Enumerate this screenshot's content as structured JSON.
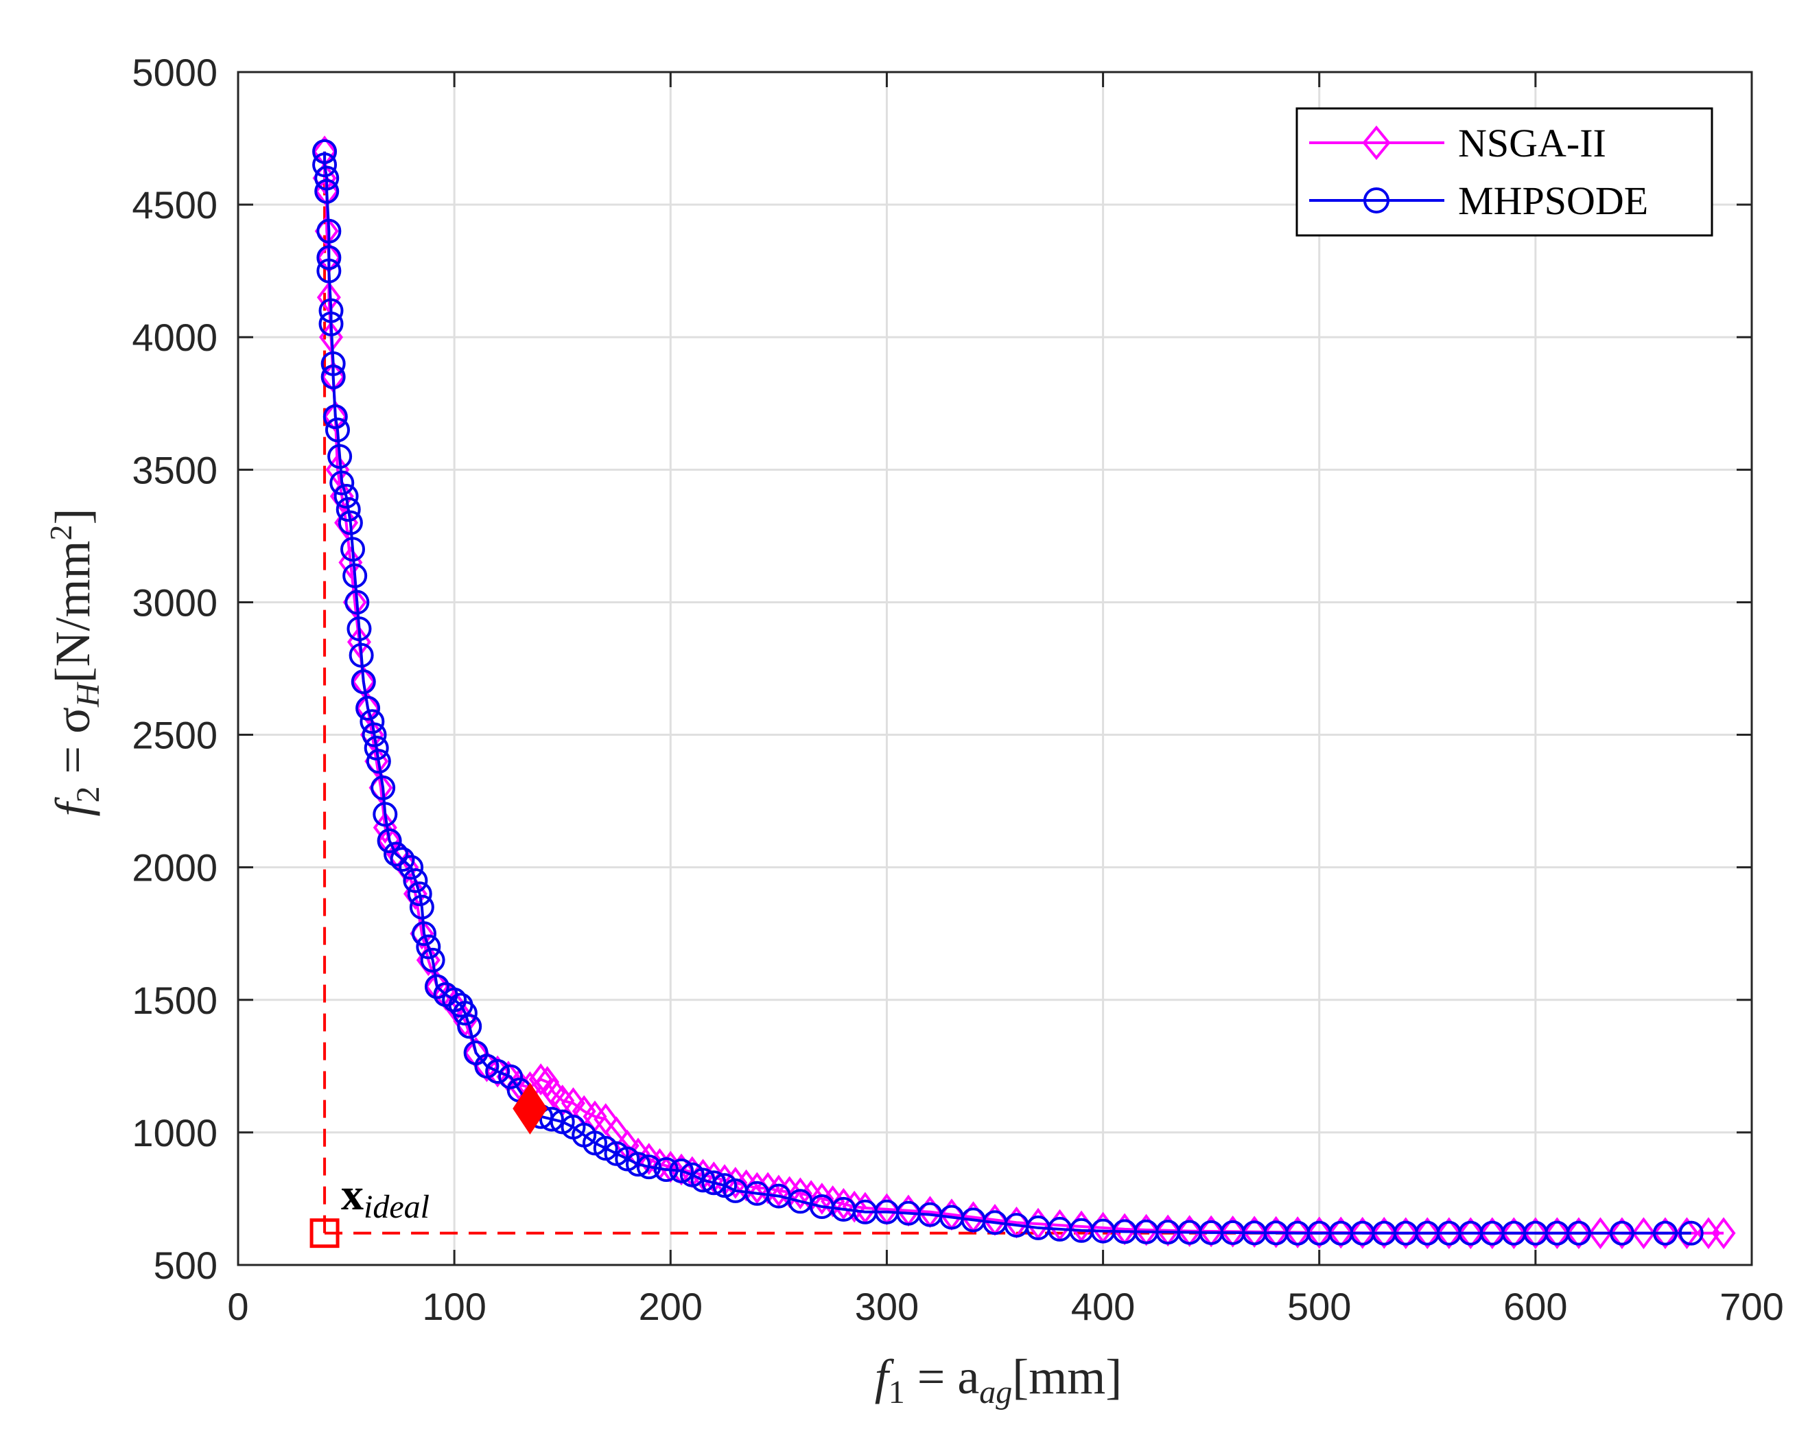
{
  "colors": {
    "nsga": "#ff00ff",
    "mhpsode": "#0000ee",
    "ideal": "#ff0000",
    "grid": "#dfdfdf",
    "axis": "#262626"
  },
  "chart_data": {
    "type": "line",
    "title": "",
    "xlabel": {
      "main": "f",
      "sub1": "1",
      "eq": " = a",
      "sub2": "ag",
      "unit": "[mm]"
    },
    "ylabel": {
      "main": "f",
      "sub1": "2",
      "eq": " = σ",
      "sub2": "H",
      "unit1": "[N/mm",
      "sup": "2",
      "unit2": "]"
    },
    "xlim": [
      0,
      700
    ],
    "ylim": [
      500,
      5000
    ],
    "x_ticks": [
      0,
      100,
      200,
      300,
      400,
      500,
      600,
      700
    ],
    "y_ticks": [
      500,
      1000,
      1500,
      2000,
      2500,
      3000,
      3500,
      4000,
      4500,
      5000
    ],
    "x_tick_labels": [
      "0",
      "100",
      "200",
      "300",
      "400",
      "500",
      "600",
      "700"
    ],
    "y_tick_labels": [
      "500",
      "1000",
      "1500",
      "2000",
      "2500",
      "3000",
      "3500",
      "4000",
      "4500",
      "5000"
    ],
    "grid": true,
    "legend_position": "top-right",
    "series": [
      {
        "name": "NSGA-II",
        "color": "#ff00ff",
        "marker": "diamond",
        "x": [
          40,
          40,
          41,
          41,
          42,
          42,
          43,
          44,
          45,
          46,
          48,
          50,
          52,
          54,
          56,
          58,
          60,
          62,
          64,
          66,
          68,
          70,
          74,
          78,
          82,
          85,
          88,
          92,
          96,
          100,
          105,
          110,
          115,
          120,
          125,
          130,
          135,
          140,
          143,
          146,
          150,
          155,
          160,
          165,
          170,
          175,
          180,
          185,
          190,
          195,
          200,
          205,
          210,
          215,
          220,
          225,
          230,
          235,
          240,
          245,
          250,
          255,
          260,
          265,
          270,
          275,
          280,
          285,
          290,
          300,
          310,
          320,
          330,
          340,
          350,
          360,
          370,
          380,
          390,
          400,
          410,
          420,
          430,
          440,
          450,
          460,
          470,
          480,
          490,
          500,
          510,
          520,
          530,
          540,
          550,
          560,
          570,
          580,
          590,
          600,
          610,
          620,
          630,
          640,
          650,
          660,
          670,
          680,
          687
        ],
        "y": [
          4700,
          4600,
          4550,
          4400,
          4300,
          4150,
          4000,
          3850,
          3700,
          3500,
          3400,
          3300,
          3150,
          3000,
          2850,
          2700,
          2600,
          2500,
          2400,
          2300,
          2150,
          2100,
          2050,
          2000,
          1900,
          1750,
          1650,
          1550,
          1520,
          1480,
          1420,
          1300,
          1250,
          1230,
          1210,
          1180,
          1170,
          1200,
          1190,
          1150,
          1120,
          1110,
          1080,
          1060,
          1050,
          1000,
          950,
          920,
          900,
          880,
          870,
          860,
          850,
          840,
          830,
          820,
          810,
          800,
          790,
          790,
          780,
          775,
          770,
          760,
          750,
          740,
          730,
          720,
          715,
          710,
          705,
          700,
          690,
          680,
          670,
          660,
          655,
          650,
          645,
          640,
          635,
          632,
          630,
          628,
          627,
          626,
          625,
          624,
          623,
          622,
          622,
          621,
          621,
          620,
          620,
          620,
          620,
          620,
          620,
          620,
          620,
          620,
          620,
          620,
          620,
          620,
          620,
          620,
          620
        ]
      },
      {
        "name": "MHPSODE",
        "color": "#0000ee",
        "marker": "circle",
        "x": [
          40,
          40,
          41,
          41,
          42,
          42,
          42,
          43,
          43,
          44,
          44,
          45,
          46,
          47,
          48,
          50,
          51,
          52,
          53,
          54,
          55,
          56,
          57,
          58,
          60,
          62,
          63,
          64,
          65,
          67,
          68,
          70,
          73,
          76,
          80,
          82,
          84,
          85,
          86,
          88,
          90,
          92,
          96,
          100,
          103,
          105,
          107,
          110,
          115,
          120,
          126,
          130,
          135,
          140,
          145,
          150,
          155,
          160,
          165,
          170,
          175,
          180,
          185,
          190,
          198,
          205,
          210,
          215,
          220,
          225,
          230,
          240,
          250,
          260,
          270,
          280,
          290,
          300,
          310,
          320,
          330,
          340,
          350,
          360,
          370,
          380,
          390,
          400,
          410,
          420,
          430,
          440,
          450,
          460,
          470,
          480,
          490,
          500,
          510,
          520,
          530,
          540,
          550,
          560,
          570,
          580,
          590,
          600,
          610,
          620,
          640,
          660,
          672
        ],
        "y": [
          4700,
          4650,
          4600,
          4550,
          4400,
          4300,
          4250,
          4100,
          4050,
          3900,
          3850,
          3700,
          3650,
          3550,
          3450,
          3400,
          3350,
          3300,
          3200,
          3100,
          3000,
          2900,
          2800,
          2700,
          2600,
          2550,
          2500,
          2450,
          2400,
          2300,
          2200,
          2100,
          2050,
          2030,
          2000,
          1950,
          1900,
          1850,
          1750,
          1700,
          1650,
          1550,
          1520,
          1500,
          1480,
          1450,
          1400,
          1300,
          1250,
          1230,
          1210,
          1160,
          1100,
          1060,
          1050,
          1040,
          1020,
          990,
          960,
          940,
          920,
          900,
          880,
          870,
          860,
          855,
          840,
          820,
          810,
          800,
          780,
          770,
          760,
          740,
          720,
          710,
          700,
          700,
          695,
          690,
          680,
          670,
          660,
          650,
          640,
          635,
          630,
          628,
          626,
          625,
          624,
          623,
          622,
          622,
          621,
          621,
          620,
          620,
          620,
          620,
          620,
          620,
          620,
          620,
          620,
          620,
          620,
          620,
          620,
          620,
          620,
          620,
          620
        ]
      }
    ],
    "highlight_point": {
      "x": 135,
      "y": 1090,
      "marker": "filled-diamond",
      "color": "#ff0000"
    },
    "ideal_point": {
      "x": 40,
      "y": 620,
      "label_main": "x",
      "label_sub": "ideal",
      "marker": "square",
      "color": "#ff0000",
      "dashed_to": {
        "x_max": 672,
        "y_max": 4700
      }
    }
  }
}
